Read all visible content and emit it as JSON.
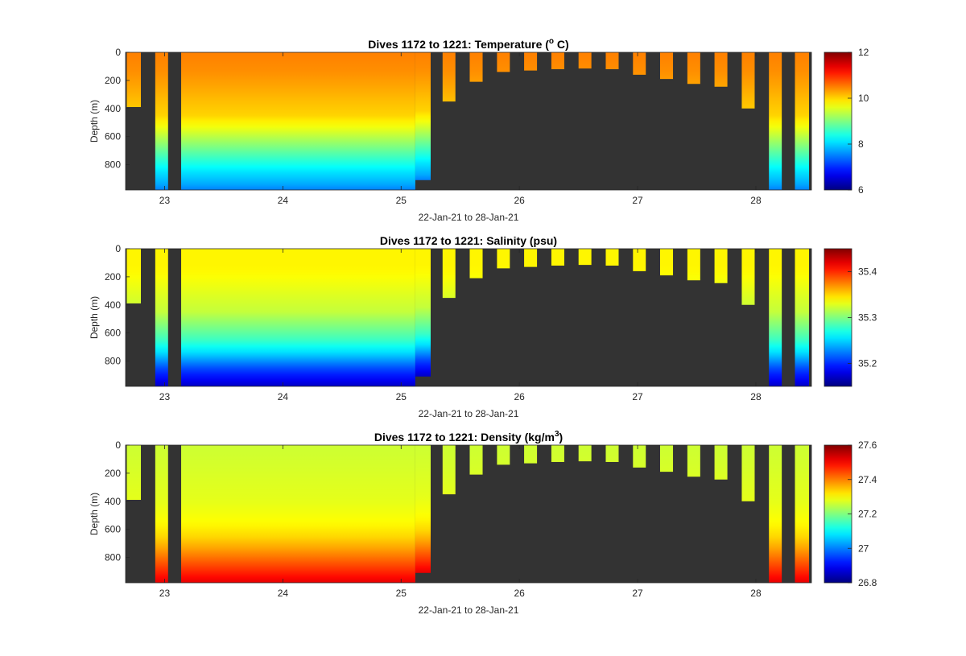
{
  "colors": {
    "no_data": "#333333",
    "axis": "#262626",
    "colormap": "jet"
  },
  "chart_data": [
    {
      "type": "heatmap",
      "variable": "temperature",
      "title": "Dives 1172 to 1221: Temperature (",
      "title_sup": "o",
      "title_tail": " C)",
      "xlabel": "22-Jan-21 to 28-Jan-21",
      "ylabel": "Depth (m)",
      "xlim": [
        22.67,
        28.47
      ],
      "ylim": [
        0,
        980
      ],
      "y_reversed": true,
      "x_ticks": [
        23,
        24,
        25,
        26,
        27,
        28
      ],
      "x_tick_labels": [
        "23",
        "24",
        "25",
        "26",
        "27",
        "28"
      ],
      "y_ticks": [
        0,
        200,
        400,
        600,
        800
      ],
      "y_tick_labels": [
        "0",
        "200",
        "400",
        "600",
        "800"
      ],
      "colorbar": {
        "range": [
          6,
          12
        ],
        "ticks": [
          6,
          8,
          10,
          12
        ],
        "tick_labels": [
          "6",
          "8",
          "10",
          "12"
        ]
      },
      "profile": [
        {
          "depth": 0,
          "value": 10.5
        },
        {
          "depth": 150,
          "value": 10.4
        },
        {
          "depth": 300,
          "value": 10.2
        },
        {
          "depth": 450,
          "value": 10.0
        },
        {
          "depth": 550,
          "value": 9.6
        },
        {
          "depth": 650,
          "value": 9.1
        },
        {
          "depth": 750,
          "value": 8.6
        },
        {
          "depth": 850,
          "value": 8.1
        },
        {
          "depth": 950,
          "value": 7.7
        },
        {
          "depth": 980,
          "value": 7.5
        }
      ]
    },
    {
      "type": "heatmap",
      "variable": "salinity",
      "title": "Dives 1172 to 1221: Salinity (psu)",
      "title_sup": "",
      "title_tail": "",
      "xlabel": "22-Jan-21 to 28-Jan-21",
      "ylabel": "Depth (m)",
      "xlim": [
        22.67,
        28.47
      ],
      "ylim": [
        0,
        980
      ],
      "y_reversed": true,
      "x_ticks": [
        23,
        24,
        25,
        26,
        27,
        28
      ],
      "x_tick_labels": [
        "23",
        "24",
        "25",
        "26",
        "27",
        "28"
      ],
      "y_ticks": [
        0,
        200,
        400,
        600,
        800
      ],
      "y_tick_labels": [
        "0",
        "200",
        "400",
        "600",
        "800"
      ],
      "colorbar": {
        "range": [
          35.15,
          35.45
        ],
        "ticks": [
          35.2,
          35.3,
          35.4
        ],
        "tick_labels": [
          "35.2",
          "35.3",
          "35.4"
        ]
      },
      "profile": [
        {
          "depth": 0,
          "value": 35.34
        },
        {
          "depth": 150,
          "value": 35.34
        },
        {
          "depth": 300,
          "value": 35.33
        },
        {
          "depth": 450,
          "value": 35.32
        },
        {
          "depth": 550,
          "value": 35.3
        },
        {
          "depth": 650,
          "value": 35.28
        },
        {
          "depth": 750,
          "value": 35.25
        },
        {
          "depth": 850,
          "value": 35.21
        },
        {
          "depth": 950,
          "value": 35.18
        },
        {
          "depth": 980,
          "value": 35.17
        }
      ]
    },
    {
      "type": "heatmap",
      "variable": "density",
      "title": "Dives 1172 to 1221: Density (kg/m",
      "title_sup": "3",
      "title_tail": ")",
      "xlabel": "22-Jan-21 to 28-Jan-21",
      "ylabel": "Depth (m)",
      "xlim": [
        22.67,
        28.47
      ],
      "ylim": [
        0,
        980
      ],
      "y_reversed": true,
      "x_ticks": [
        23,
        24,
        25,
        26,
        27,
        28
      ],
      "x_tick_labels": [
        "23",
        "24",
        "25",
        "26",
        "27",
        "28"
      ],
      "y_ticks": [
        0,
        200,
        400,
        600,
        800
      ],
      "y_tick_labels": [
        "0",
        "200",
        "400",
        "600",
        "800"
      ],
      "colorbar": {
        "range": [
          26.8,
          27.6
        ],
        "ticks": [
          26.8,
          27,
          27.2,
          27.4,
          27.6
        ],
        "tick_labels": [
          "26.8",
          "27",
          "27.2",
          "27.4",
          "27.6"
        ]
      },
      "profile": [
        {
          "depth": 0,
          "value": 27.26
        },
        {
          "depth": 200,
          "value": 27.27
        },
        {
          "depth": 400,
          "value": 27.28
        },
        {
          "depth": 550,
          "value": 27.3
        },
        {
          "depth": 650,
          "value": 27.33
        },
        {
          "depth": 750,
          "value": 27.38
        },
        {
          "depth": 850,
          "value": 27.44
        },
        {
          "depth": 950,
          "value": 27.5
        },
        {
          "depth": 980,
          "value": 27.52
        }
      ]
    }
  ],
  "dives": [
    {
      "x_start": 22.68,
      "x_end": 22.8,
      "max_depth": 390
    },
    {
      "x_start": 22.92,
      "x_end": 23.03,
      "max_depth": 980
    },
    {
      "x_start": 23.14,
      "x_end": 25.25,
      "max_depth": 980,
      "cutoff_from": 25.12,
      "cutoff_depth": 910
    },
    {
      "x_start": 25.35,
      "x_end": 25.46,
      "max_depth": 350
    },
    {
      "x_start": 25.58,
      "x_end": 25.69,
      "max_depth": 210
    },
    {
      "x_start": 25.81,
      "x_end": 25.92,
      "max_depth": 140
    },
    {
      "x_start": 26.04,
      "x_end": 26.15,
      "max_depth": 130
    },
    {
      "x_start": 26.27,
      "x_end": 26.38,
      "max_depth": 120
    },
    {
      "x_start": 26.5,
      "x_end": 26.61,
      "max_depth": 115
    },
    {
      "x_start": 26.73,
      "x_end": 26.84,
      "max_depth": 120
    },
    {
      "x_start": 26.96,
      "x_end": 27.07,
      "max_depth": 160
    },
    {
      "x_start": 27.19,
      "x_end": 27.3,
      "max_depth": 190
    },
    {
      "x_start": 27.42,
      "x_end": 27.53,
      "max_depth": 225
    },
    {
      "x_start": 27.65,
      "x_end": 27.76,
      "max_depth": 245
    },
    {
      "x_start": 27.88,
      "x_end": 27.99,
      "max_depth": 400
    },
    {
      "x_start": 28.11,
      "x_end": 28.22,
      "max_depth": 980
    },
    {
      "x_start": 28.33,
      "x_end": 28.45,
      "max_depth": 980
    }
  ]
}
